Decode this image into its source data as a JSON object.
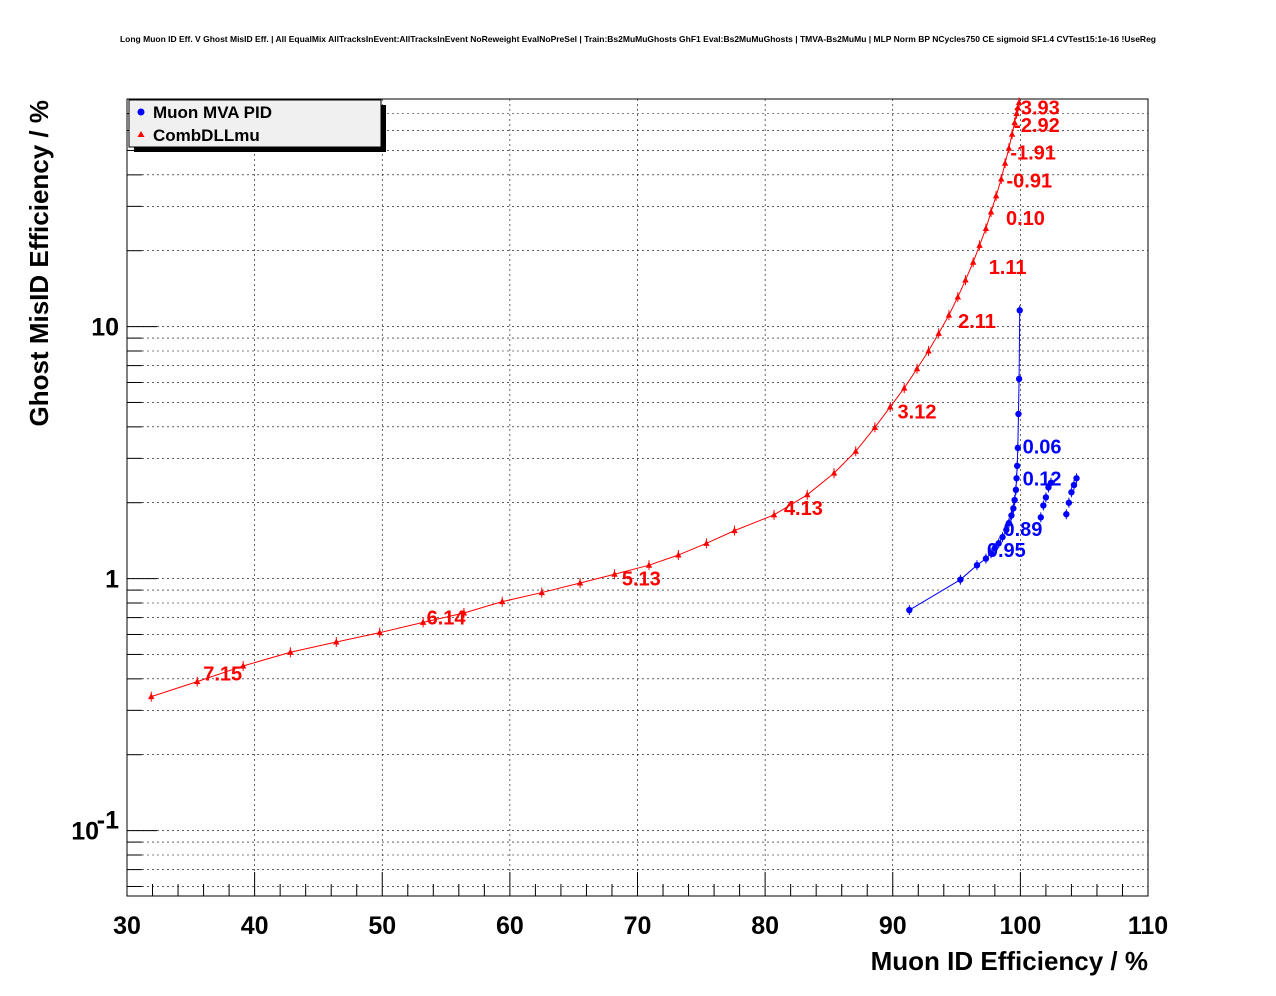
{
  "chart_data": {
    "type": "scatter",
    "title": "Long Muon ID Eff. V Ghost MisID Eff. | All EqualMix AllTracksInEvent:AllTracksInEvent NoReweight EvalNoPreSel | Train:Bs2MuMuGhosts GhF1 Eval:Bs2MuMuGhosts | TMVA-Bs2MuMu | MLP Norm BP NCycles750 CE sigmoid SF1.4 CVTest15:1e-16 !UseReg",
    "xlabel": "Muon ID Efficiency / %",
    "ylabel": "Ghost MisID Efficiency / %",
    "xlim": [
      30,
      110
    ],
    "ylim": [
      0.055,
      80
    ],
    "yscale": "log",
    "grid": true,
    "legend_position": "top-left",
    "x_ticks": [
      "30",
      "40",
      "50",
      "60",
      "70",
      "80",
      "90",
      "100",
      "110"
    ],
    "y_ticks": [
      {
        "value": 0.1,
        "base": "10",
        "exp": "-1"
      },
      {
        "value": 1,
        "base": "1",
        "exp": ""
      },
      {
        "value": 10,
        "base": "10",
        "exp": ""
      }
    ],
    "series": [
      {
        "name": "Muon MVA PID",
        "color": "#0000ff",
        "marker": "circle",
        "points": [
          [
            91.3,
            0.75
          ],
          [
            95.3,
            0.99
          ],
          [
            96.6,
            1.13
          ],
          [
            97.3,
            1.2
          ],
          [
            97.7,
            1.26
          ],
          [
            98.0,
            1.32
          ],
          [
            98.3,
            1.38
          ],
          [
            98.6,
            1.46
          ],
          [
            98.9,
            1.56
          ],
          [
            99.1,
            1.66
          ],
          [
            99.3,
            1.78
          ],
          [
            99.45,
            1.9
          ],
          [
            99.55,
            2.05
          ],
          [
            99.65,
            2.25
          ],
          [
            99.7,
            2.5
          ],
          [
            99.75,
            2.8
          ],
          [
            99.8,
            3.3
          ],
          [
            99.85,
            4.5
          ],
          [
            99.9,
            6.2
          ],
          [
            99.95,
            11.6
          ]
        ],
        "extra_points": [
          [
            101.6,
            1.75
          ],
          [
            101.8,
            1.95
          ],
          [
            102.0,
            2.1
          ],
          [
            102.2,
            2.3
          ],
          [
            102.4,
            2.4
          ],
          [
            103.6,
            1.8
          ],
          [
            103.8,
            2.0
          ],
          [
            104.0,
            2.2
          ],
          [
            104.2,
            2.35
          ],
          [
            104.4,
            2.5
          ]
        ]
      },
      {
        "name": "CombDLLmu",
        "color": "#ff0000",
        "marker": "triangle",
        "points": [
          [
            31.9,
            0.34
          ],
          [
            35.5,
            0.39
          ],
          [
            39.1,
            0.45
          ],
          [
            42.8,
            0.51
          ],
          [
            46.4,
            0.56
          ],
          [
            49.8,
            0.61
          ],
          [
            53.2,
            0.67
          ],
          [
            56.4,
            0.73
          ],
          [
            59.4,
            0.81
          ],
          [
            62.5,
            0.88
          ],
          [
            65.5,
            0.96
          ],
          [
            68.2,
            1.04
          ],
          [
            70.9,
            1.13
          ],
          [
            73.2,
            1.24
          ],
          [
            75.4,
            1.38
          ],
          [
            77.6,
            1.55
          ],
          [
            80.7,
            1.79
          ],
          [
            83.3,
            2.15
          ],
          [
            85.4,
            2.62
          ],
          [
            87.1,
            3.2
          ],
          [
            88.6,
            3.98
          ],
          [
            89.8,
            4.8
          ],
          [
            90.9,
            5.7
          ],
          [
            91.9,
            6.8
          ],
          [
            92.8,
            8.0
          ],
          [
            93.6,
            9.4
          ],
          [
            94.4,
            11.1
          ],
          [
            95.1,
            13.1
          ],
          [
            95.7,
            15.3
          ],
          [
            96.3,
            18.0
          ],
          [
            96.8,
            21.0
          ],
          [
            97.3,
            24.5
          ],
          [
            97.7,
            28.5
          ],
          [
            98.1,
            33.0
          ],
          [
            98.5,
            38.5
          ],
          [
            98.8,
            44.5
          ],
          [
            99.1,
            51.0
          ],
          [
            99.35,
            58.0
          ],
          [
            99.55,
            64.5
          ],
          [
            99.7,
            70.0
          ],
          [
            99.8,
            74.0
          ],
          [
            99.9,
            77.5
          ]
        ]
      }
    ],
    "annotations": [
      {
        "text": "-3.93",
        "x": 101.3,
        "y": 74,
        "color": "#ff0000"
      },
      {
        "text": "-2.92",
        "x": 101.3,
        "y": 63,
        "color": "#ff0000"
      },
      {
        "text": "-1.91",
        "x": 101.0,
        "y": 49,
        "color": "#ff0000"
      },
      {
        "text": "-0.91",
        "x": 100.7,
        "y": 38,
        "color": "#ff0000"
      },
      {
        "text": "0.10",
        "x": 100.4,
        "y": 27,
        "color": "#ff0000"
      },
      {
        "text": "1.11",
        "x": 99.0,
        "y": 17.2,
        "color": "#ff0000"
      },
      {
        "text": "2.11",
        "x": 96.6,
        "y": 10.5,
        "color": "#ff0000"
      },
      {
        "text": "3.12",
        "x": 91.9,
        "y": 4.6,
        "color": "#ff0000"
      },
      {
        "text": "4.13",
        "x": 83.0,
        "y": 1.91,
        "color": "#ff0000"
      },
      {
        "text": "5.13",
        "x": 70.3,
        "y": 1.0,
        "color": "#ff0000"
      },
      {
        "text": "6.14",
        "x": 55.0,
        "y": 0.7,
        "color": "#ff0000"
      },
      {
        "text": "7.15",
        "x": 37.5,
        "y": 0.42,
        "color": "#ff0000"
      },
      {
        "text": "0.06",
        "x": 101.7,
        "y": 3.35,
        "color": "#0000ff"
      },
      {
        "text": "0.12",
        "x": 101.7,
        "y": 2.5,
        "color": "#0000ff"
      },
      {
        "text": "0.89",
        "x": 100.2,
        "y": 1.57,
        "color": "#0000ff"
      },
      {
        "text": "0.95",
        "x": 98.9,
        "y": 1.3,
        "color": "#0000ff"
      }
    ]
  }
}
